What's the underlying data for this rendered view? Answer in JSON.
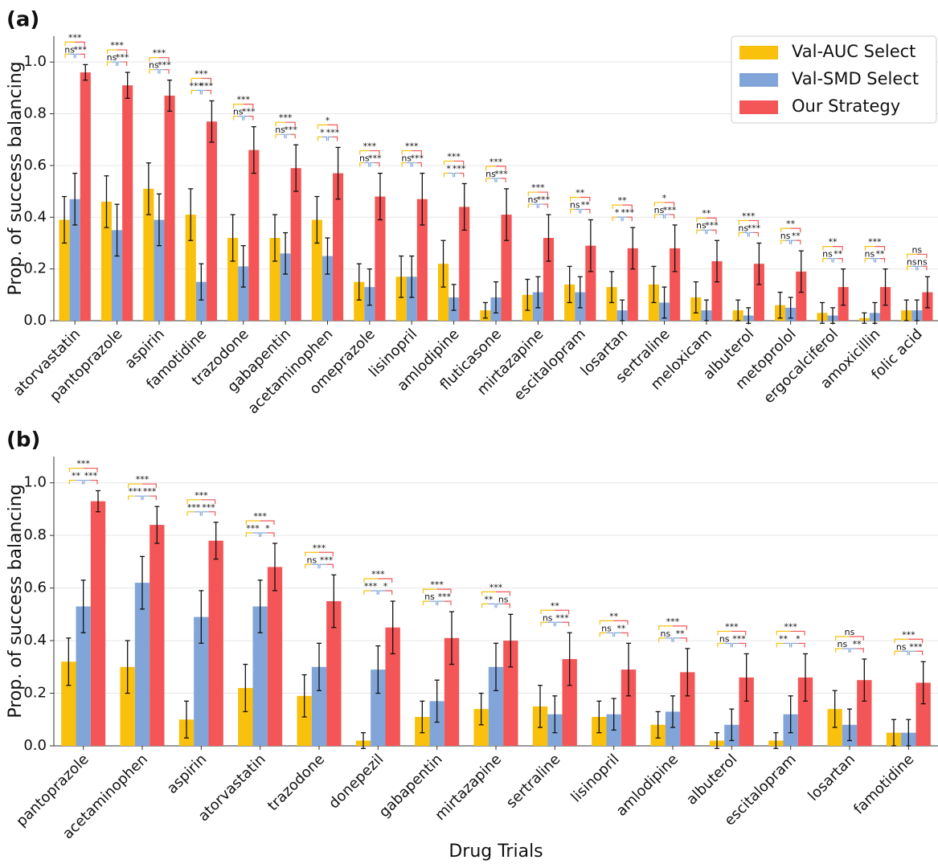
{
  "chart_data": [
    {
      "type": "bar",
      "panel_label": "(a)",
      "ylabel": "Prop. of success balancing",
      "categories": [
        "atorvastatin",
        "pantoprazole",
        "aspirin",
        "famotidine",
        "trazodone",
        "gabapentin",
        "acetaminophen",
        "omeprazole",
        "lisinopril",
        "amlodipine",
        "fluticasone",
        "mirtazapine",
        "escitalopram",
        "losartan",
        "sertraline",
        "meloxicam",
        "albuterol",
        "metoprolol",
        "ergocalciferol",
        "amoxicillin",
        "folic acid"
      ],
      "series": [
        {
          "name": "Val-AUC Select",
          "color": "#f9c00c",
          "values": [
            0.39,
            0.46,
            0.51,
            0.41,
            0.32,
            0.32,
            0.39,
            0.15,
            0.17,
            0.22,
            0.04,
            0.1,
            0.14,
            0.13,
            0.14,
            0.09,
            0.04,
            0.06,
            0.03,
            0.01,
            0.04
          ],
          "errors": [
            0.09,
            0.1,
            0.1,
            0.1,
            0.09,
            0.09,
            0.09,
            0.07,
            0.08,
            0.09,
            0.03,
            0.06,
            0.07,
            0.06,
            0.07,
            0.06,
            0.04,
            0.05,
            0.04,
            0.02,
            0.04
          ]
        },
        {
          "name": "Val-SMD Select",
          "color": "#82a5d9",
          "values": [
            0.47,
            0.35,
            0.39,
            0.15,
            0.21,
            0.26,
            0.25,
            0.13,
            0.17,
            0.09,
            0.09,
            0.11,
            0.11,
            0.04,
            0.07,
            0.04,
            0.02,
            0.05,
            0.02,
            0.03,
            0.04
          ],
          "errors": [
            0.1,
            0.1,
            0.1,
            0.07,
            0.08,
            0.08,
            0.07,
            0.07,
            0.08,
            0.05,
            0.06,
            0.06,
            0.06,
            0.04,
            0.06,
            0.04,
            0.03,
            0.04,
            0.03,
            0.04,
            0.04
          ]
        },
        {
          "name": "Our Strategy",
          "color": "#f45556",
          "values": [
            0.96,
            0.91,
            0.87,
            0.77,
            0.66,
            0.59,
            0.57,
            0.48,
            0.47,
            0.44,
            0.41,
            0.32,
            0.29,
            0.28,
            0.28,
            0.23,
            0.22,
            0.19,
            0.13,
            0.13,
            0.11
          ],
          "errors": [
            0.03,
            0.05,
            0.06,
            0.08,
            0.09,
            0.09,
            0.1,
            0.09,
            0.1,
            0.09,
            0.1,
            0.09,
            0.1,
            0.08,
            0.09,
            0.08,
            0.08,
            0.08,
            0.07,
            0.07,
            0.06
          ]
        }
      ],
      "significance": [
        [
          "***",
          "ns",
          "***"
        ],
        [
          "***",
          "ns",
          "***"
        ],
        [
          "***",
          "ns",
          "***"
        ],
        [
          "***",
          "***",
          "***"
        ],
        [
          "***",
          "ns",
          "***"
        ],
        [
          "***",
          "ns",
          "***"
        ],
        [
          "*",
          "*",
          "***"
        ],
        [
          "***",
          "ns",
          "***"
        ],
        [
          "***",
          "ns",
          "***"
        ],
        [
          "***",
          "*",
          "***"
        ],
        [
          "***",
          "ns",
          "***"
        ],
        [
          "***",
          "ns",
          "***"
        ],
        [
          "**",
          "ns",
          "**"
        ],
        [
          "**",
          "*",
          "***"
        ],
        [
          "*",
          "ns",
          "***"
        ],
        [
          "**",
          "ns",
          "***"
        ],
        [
          "***",
          "ns",
          "***"
        ],
        [
          "**",
          "ns",
          "**"
        ],
        [
          "**",
          "ns",
          "**"
        ],
        [
          "***",
          "ns",
          "**"
        ],
        [
          "ns",
          "ns",
          "ns"
        ]
      ],
      "ylim": [
        0,
        1.1
      ],
      "yticks": [
        {
          "value": 0,
          "label": "0.0"
        },
        0.2,
        0.4,
        0.6,
        0.8,
        {
          "value": 1,
          "label": "1.0"
        }
      ],
      "grid": true,
      "legend": "upper right"
    },
    {
      "type": "bar",
      "panel_label": "(b)",
      "ylabel": "Prop. of success balancing",
      "xlabel": "Drug Trials",
      "categories": [
        "pantoprazole",
        "acetaminophen",
        "aspirin",
        "atorvastatin",
        "trazodone",
        "donepezil",
        "gabapentin",
        "mirtazapine",
        "sertraline",
        "lisinopril",
        "amlodipine",
        "albuterol",
        "escitalopram",
        "losartan",
        "famotidine"
      ],
      "series": [
        {
          "color": "#f9c00c",
          "values": [
            0.32,
            0.3,
            0.1,
            0.22,
            0.19,
            0.02,
            0.11,
            0.14,
            0.15,
            0.11,
            0.08,
            0.02,
            0.02,
            0.14,
            0.05
          ],
          "errors": [
            0.09,
            0.1,
            0.07,
            0.09,
            0.08,
            0.03,
            0.06,
            0.06,
            0.08,
            0.06,
            0.05,
            0.03,
            0.03,
            0.07,
            0.05
          ]
        },
        {
          "color": "#82a5d9",
          "values": [
            0.53,
            0.62,
            0.49,
            0.53,
            0.3,
            0.29,
            0.17,
            0.3,
            0.12,
            0.12,
            0.13,
            0.08,
            0.12,
            0.08,
            0.05
          ],
          "errors": [
            0.1,
            0.1,
            0.1,
            0.1,
            0.09,
            0.09,
            0.08,
            0.09,
            0.07,
            0.06,
            0.06,
            0.06,
            0.07,
            0.06,
            0.05
          ]
        },
        {
          "color": "#f45556",
          "values": [
            0.93,
            0.84,
            0.78,
            0.68,
            0.55,
            0.45,
            0.41,
            0.4,
            0.33,
            0.29,
            0.28,
            0.26,
            0.26,
            0.25,
            0.24
          ],
          "errors": [
            0.04,
            0.07,
            0.07,
            0.09,
            0.1,
            0.1,
            0.1,
            0.1,
            0.1,
            0.1,
            0.09,
            0.09,
            0.09,
            0.08,
            0.08
          ]
        }
      ],
      "significance": [
        [
          "***",
          "**",
          "***"
        ],
        [
          "***",
          "***",
          "***"
        ],
        [
          "***",
          "***",
          "***"
        ],
        [
          "***",
          "***",
          "*"
        ],
        [
          "***",
          "ns",
          "***"
        ],
        [
          "***",
          "***",
          "*"
        ],
        [
          "***",
          "ns",
          "***"
        ],
        [
          "***",
          "**",
          "ns"
        ],
        [
          "**",
          "ns",
          "***"
        ],
        [
          "**",
          "ns",
          "**"
        ],
        [
          "***",
          "ns",
          "**"
        ],
        [
          "***",
          "ns",
          "***"
        ],
        [
          "***",
          "**",
          "*"
        ],
        [
          "ns",
          "ns",
          "**"
        ],
        [
          "***",
          "ns",
          "***"
        ]
      ],
      "ylim": [
        0,
        1.1
      ],
      "yticks": [
        {
          "value": 0,
          "label": "0.0"
        },
        0.2,
        0.4,
        0.6,
        0.8,
        {
          "value": 1,
          "label": "1.0"
        }
      ],
      "grid": true
    }
  ]
}
